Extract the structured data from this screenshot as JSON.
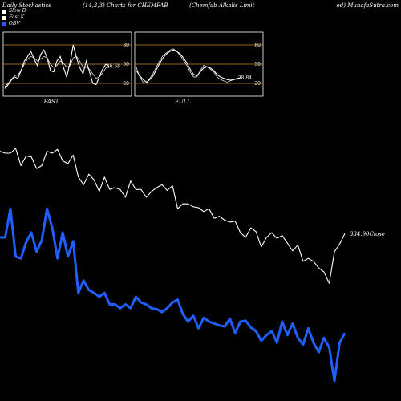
{
  "header": {
    "left": "Daily Stochastics",
    "mid": "(14,3,3) Charts for CHEMFAB",
    "right": "(Chemfab Alkalis Limit",
    "far_right": "ed) MunafaSutra.com"
  },
  "legend": [
    {
      "label": "Slow D",
      "color": "#ffffff"
    },
    {
      "label": "Fast K",
      "color": "#ffffff"
    },
    {
      "label": "OBV",
      "color": "#1f5fff"
    }
  ],
  "colors": {
    "obv": "#1f5fff",
    "price": "#ffffff",
    "band": "#c88a1e",
    "panel_border": "#ffffff"
  },
  "chart_data": [
    {
      "type": "line",
      "title": "FAST",
      "ylim": [
        0,
        100
      ],
      "yticks": [
        20,
        50,
        80
      ],
      "value_label": "46.58",
      "series": [
        {
          "name": "Fast K",
          "values": [
            12,
            18,
            25,
            30,
            28,
            40,
            55,
            62,
            70,
            58,
            48,
            65,
            72,
            60,
            40,
            38,
            55,
            62,
            45,
            30,
            52,
            80,
            60,
            45,
            35,
            55,
            38,
            20,
            18,
            30,
            42,
            50,
            46.58
          ]
        },
        {
          "name": "Slow D",
          "values": [
            15,
            20,
            26,
            32,
            33,
            40,
            50,
            58,
            62,
            60,
            55,
            58,
            62,
            60,
            50,
            45,
            48,
            55,
            52,
            45,
            48,
            60,
            62,
            55,
            45,
            45,
            42,
            35,
            28,
            30,
            36,
            44,
            46
          ]
        }
      ]
    },
    {
      "type": "line",
      "title": "FULL",
      "ylim": [
        0,
        100
      ],
      "yticks": [
        20,
        50,
        80
      ],
      "value_label": "28.84",
      "series": [
        {
          "name": "Slow D",
          "values": [
            40,
            32,
            26,
            22,
            26,
            32,
            42,
            52,
            60,
            66,
            70,
            72,
            70,
            66,
            60,
            52,
            42,
            34,
            32,
            38,
            44,
            46,
            44,
            40,
            34,
            30,
            28,
            26,
            25,
            26,
            27,
            28.84
          ]
        },
        {
          "name": "Fast K",
          "values": [
            45,
            30,
            22,
            20,
            28,
            36,
            46,
            56,
            64,
            68,
            72,
            74,
            70,
            64,
            56,
            48,
            38,
            30,
            30,
            40,
            48,
            46,
            42,
            38,
            30,
            26,
            24,
            22,
            24,
            26,
            28,
            28.84
          ]
        }
      ]
    },
    {
      "type": "line",
      "title": "",
      "value_label": "334.90Close",
      "series": [
        {
          "name": "OBV",
          "values": [
            210,
            210,
            240,
            190,
            188,
            205,
            215,
            195,
            207,
            240,
            220,
            188,
            215,
            190,
            206,
            152,
            165,
            155,
            152,
            148,
            152,
            140,
            140,
            136,
            140,
            136,
            148,
            142,
            140,
            136,
            135,
            132,
            136,
            142,
            145,
            130,
            122,
            128,
            115,
            126,
            122,
            120,
            118,
            117,
            125,
            110,
            122,
            123,
            116,
            112,
            102,
            108,
            112,
            100,
            122,
            108,
            120,
            105,
            98,
            115,
            100,
            90,
            105,
            95,
            60,
            100,
            110
          ]
        },
        {
          "name": "Close",
          "values": [
            300,
            298,
            298,
            303,
            285,
            295,
            294,
            282,
            285,
            300,
            298,
            302,
            290,
            287,
            296,
            273,
            265,
            276,
            270,
            258,
            273,
            260,
            262,
            260,
            252,
            269,
            260,
            260,
            252,
            258,
            262,
            265,
            259,
            264,
            240,
            245,
            245,
            242,
            241,
            237,
            240,
            230,
            232,
            228,
            226,
            227,
            215,
            210,
            220,
            216,
            200,
            210,
            215,
            209,
            212,
            204,
            196,
            202,
            185,
            188,
            185,
            178,
            174,
            162,
            195,
            203,
            214
          ]
        }
      ]
    }
  ]
}
